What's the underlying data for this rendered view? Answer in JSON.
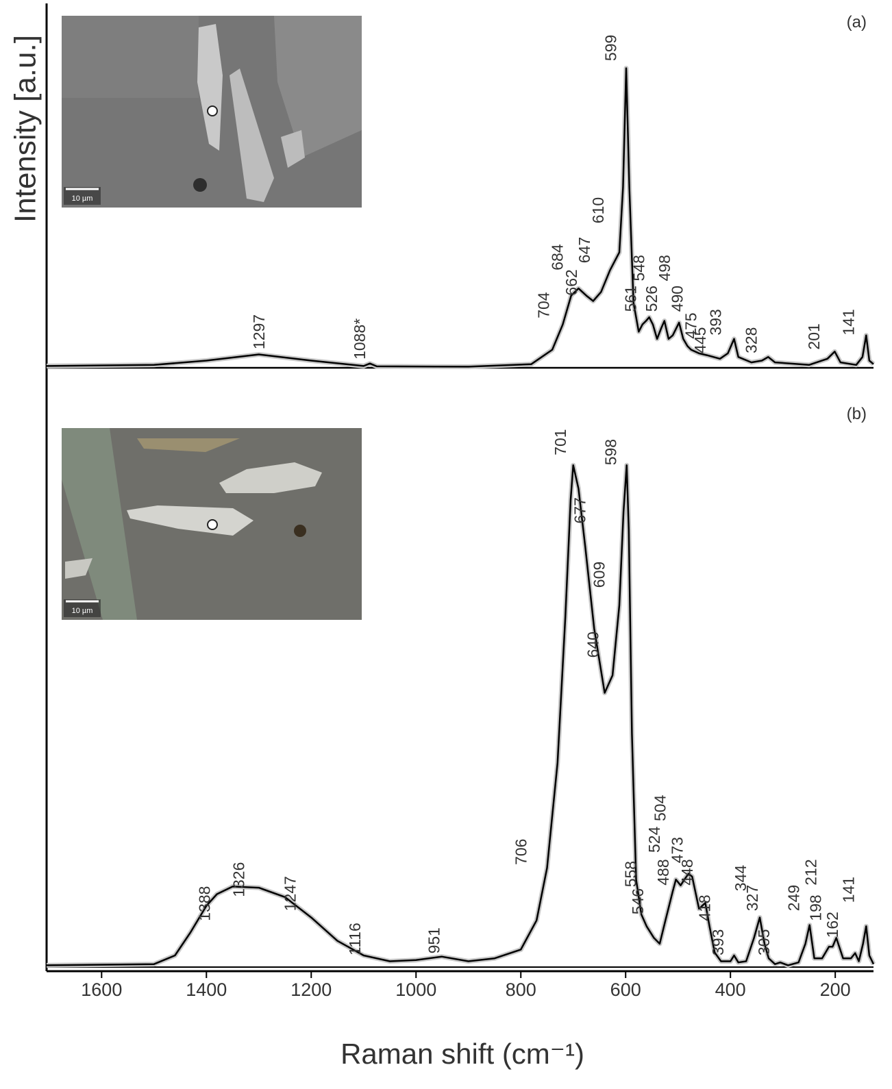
{
  "chart_data": [
    {
      "type": "line",
      "panel_label": "(a)",
      "ylabel": "Intensity [a.u.]",
      "inset_scale": "10 µm",
      "xlim": [
        1705,
        127
      ],
      "ylim": [
        0,
        100
      ],
      "x": [
        1705,
        1500,
        1400,
        1300,
        1200,
        1100,
        1088,
        1075,
        900,
        780,
        740,
        720,
        704,
        690,
        675,
        662,
        647,
        630,
        612,
        605,
        599,
        593,
        585,
        575,
        568,
        561,
        555,
        548,
        540,
        532,
        526,
        518,
        510,
        498,
        490,
        482,
        475,
        460,
        445,
        420,
        405,
        393,
        385,
        360,
        340,
        328,
        315,
        250,
        215,
        201,
        190,
        160,
        148,
        141,
        135,
        127
      ],
      "series": [
        {
          "color": "#000000",
          "values": [
            0.5,
            0.8,
            2,
            3.7,
            2,
            0.5,
            1.2,
            0.4,
            0.3,
            1,
            5,
            12,
            20,
            22,
            20,
            18.5,
            21,
            27,
            32,
            50,
            83,
            50,
            18,
            10,
            12,
            13,
            14,
            12,
            8,
            11,
            13,
            8,
            9,
            12.5,
            8,
            6,
            5,
            4,
            3.5,
            2.5,
            4,
            8,
            3,
            1.5,
            2,
            3,
            1.5,
            0.8,
            2.5,
            4.5,
            1.5,
            0.8,
            3,
            9,
            2,
            1
          ]
        }
      ],
      "annotations": [
        {
          "label": "1297",
          "x": 1297,
          "y": 5.1
        },
        {
          "label": "1088*",
          "x": 1105,
          "y": 2.3
        },
        {
          "label": "704",
          "x": 754,
          "y": 13.7
        },
        {
          "label": "684",
          "x": 728,
          "y": 27
        },
        {
          "label": "662",
          "x": 701,
          "y": 20
        },
        {
          "label": "647",
          "x": 676,
          "y": 29
        },
        {
          "label": "610",
          "x": 650,
          "y": 40
        },
        {
          "label": "599",
          "x": 626,
          "y": 85
        },
        {
          "label": "561",
          "x": 588,
          "y": 15.5
        },
        {
          "label": "548",
          "x": 572,
          "y": 24
        },
        {
          "label": "526",
          "x": 548,
          "y": 15.5
        },
        {
          "label": "498",
          "x": 523,
          "y": 24
        },
        {
          "label": "490",
          "x": 499,
          "y": 15.5
        },
        {
          "label": "475",
          "x": 473,
          "y": 8
        },
        {
          "label": "445",
          "x": 455,
          "y": 4
        },
        {
          "label": "393",
          "x": 426,
          "y": 9
        },
        {
          "label": "328",
          "x": 358,
          "y": 4
        },
        {
          "label": "201",
          "x": 238,
          "y": 5
        },
        {
          "label": "141",
          "x": 172,
          "y": 9
        }
      ]
    },
    {
      "type": "line",
      "panel_label": "(b)",
      "xlabel": "Raman shift (cm⁻¹)",
      "inset_scale": "10 µm",
      "xlim": [
        1705,
        127
      ],
      "ylim": [
        0,
        100
      ],
      "xticks": [
        1600,
        1400,
        1200,
        1000,
        800,
        600,
        400,
        200
      ],
      "x": [
        1705,
        1500,
        1460,
        1430,
        1400,
        1380,
        1350,
        1300,
        1250,
        1200,
        1150,
        1100,
        1050,
        1000,
        951,
        900,
        850,
        800,
        770,
        750,
        730,
        715,
        705,
        700,
        690,
        677,
        660,
        640,
        625,
        612,
        604,
        598,
        594,
        588,
        580,
        570,
        560,
        546,
        535,
        524,
        510,
        504,
        495,
        488,
        480,
        473,
        460,
        448,
        440,
        430,
        418,
        400,
        393,
        385,
        370,
        355,
        344,
        335,
        327,
        315,
        305,
        290,
        270,
        257,
        249,
        240,
        225,
        212,
        205,
        198,
        185,
        170,
        162,
        155,
        147,
        141,
        135,
        127
      ],
      "series": [
        {
          "color": "#000000",
          "values": [
            0.3,
            0.5,
            2,
            6,
            10.5,
            12.5,
            13.8,
            13.6,
            12,
            8.5,
            4.5,
            2,
            1,
            1.2,
            1.8,
            1,
            1.5,
            3,
            8,
            17,
            35,
            60,
            80,
            86,
            82,
            72,
            58,
            47,
            50,
            62,
            78,
            86,
            75,
            40,
            15,
            9,
            7,
            5,
            4,
            8,
            13,
            15,
            14,
            15,
            16,
            15.5,
            10,
            11,
            7,
            2.5,
            1,
            1,
            2,
            0.8,
            1,
            5,
            8.5,
            4,
            1.5,
            0.5,
            0.8,
            0.3,
            0.8,
            4,
            7.2,
            1.5,
            1.5,
            3.5,
            3.5,
            5,
            1.5,
            1.5,
            2.4,
            1,
            4,
            7,
            2,
            0.5
          ]
        }
      ],
      "annotations": [
        {
          "label": "1388",
          "x": 1401,
          "y": 7.9
        },
        {
          "label": "1326",
          "x": 1336,
          "y": 12
        },
        {
          "label": "1247",
          "x": 1238,
          "y": 9.6
        },
        {
          "label": "1116",
          "x": 1114,
          "y": 2
        },
        {
          "label": "951",
          "x": 963,
          "y": 2.3
        },
        {
          "label": "706",
          "x": 797,
          "y": 17.5
        },
        {
          "label": "701",
          "x": 722,
          "y": 87.7
        },
        {
          "label": "677",
          "x": 685,
          "y": 76
        },
        {
          "label": "609",
          "x": 648,
          "y": 65
        },
        {
          "label": "640",
          "x": 660,
          "y": 53
        },
        {
          "label": "598",
          "x": 626,
          "y": 86
        },
        {
          "label": "558",
          "x": 588,
          "y": 13.7
        },
        {
          "label": "546",
          "x": 574,
          "y": 9
        },
        {
          "label": "524",
          "x": 543,
          "y": 19.6
        },
        {
          "label": "504",
          "x": 532,
          "y": 25
        },
        {
          "label": "488",
          "x": 526,
          "y": 14
        },
        {
          "label": "473",
          "x": 499,
          "y": 17.8
        },
        {
          "label": "448",
          "x": 480,
          "y": 14
        },
        {
          "label": "418",
          "x": 447,
          "y": 7.9
        },
        {
          "label": "393",
          "x": 421,
          "y": 2
        },
        {
          "label": "344",
          "x": 378,
          "y": 13
        },
        {
          "label": "327",
          "x": 356,
          "y": 9.6
        },
        {
          "label": "305",
          "x": 334,
          "y": 2
        },
        {
          "label": "249",
          "x": 277,
          "y": 9.6
        },
        {
          "label": "212",
          "x": 244,
          "y": 14
        },
        {
          "label": "198",
          "x": 235,
          "y": 7.9
        },
        {
          "label": "162",
          "x": 203,
          "y": 5
        },
        {
          "label": "141",
          "x": 172,
          "y": 11
        }
      ]
    }
  ]
}
